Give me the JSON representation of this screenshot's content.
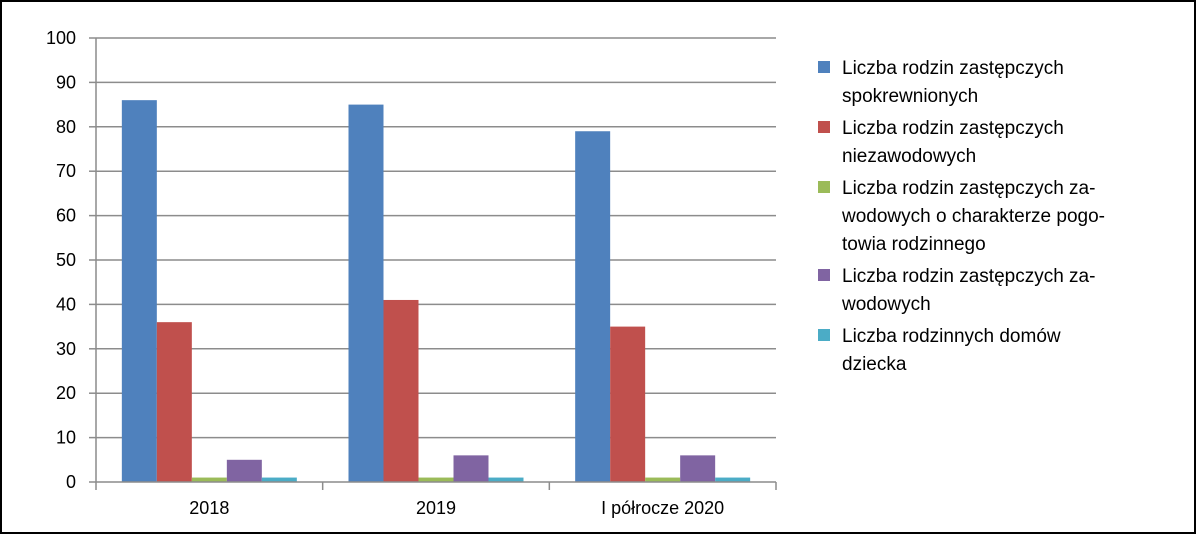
{
  "chart_data": {
    "type": "bar",
    "categories": [
      "2018",
      "2019",
      "I półrocze 2020"
    ],
    "ylim": [
      0,
      100
    ],
    "yticks": [
      0,
      10,
      20,
      30,
      40,
      50,
      60,
      70,
      80,
      90,
      100
    ],
    "grid": true,
    "legend_position": "right",
    "series": [
      {
        "name": "Liczba rodzin zastępczych spokrewnionych",
        "legend_lines": [
          "Liczba rodzin zastępczych",
          "spokrewnionych"
        ],
        "color": "#4f81bd",
        "values": [
          86,
          85,
          79
        ]
      },
      {
        "name": "Liczba rodzin zastępczych niezawodowych",
        "legend_lines": [
          "Liczba rodzin zastępczych",
          "niezawodowych"
        ],
        "color": "#c0504d",
        "values": [
          36,
          41,
          35
        ]
      },
      {
        "name": "Liczba rodzin zastępczych zawodowych o charakterze pogotowia rodzinnego",
        "legend_lines": [
          "Liczba rodzin zastępczych za-",
          "wodowych o charakterze pogo-",
          "towia rodzinnego"
        ],
        "color": "#9bbb59",
        "values": [
          1,
          1,
          1
        ]
      },
      {
        "name": "Liczba rodzin zastępczych zawodowych",
        "legend_lines": [
          "Liczba rodzin zastępczych za-",
          "wodowych"
        ],
        "color": "#8064a2",
        "values": [
          5,
          6,
          6
        ]
      },
      {
        "name": "Liczba rodzinnych domów dziecka",
        "legend_lines": [
          "Liczba rodzinnych domów",
          "dziecka"
        ],
        "color": "#4bacc6",
        "values": [
          1,
          1,
          1
        ]
      }
    ]
  }
}
